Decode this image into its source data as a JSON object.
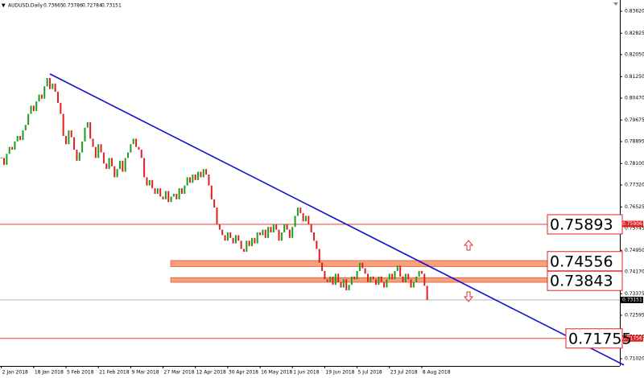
{
  "chart_data": {
    "type": "candlestick",
    "symbol": "AUDUSD,Daily",
    "ohlc": [
      0.73665,
      0.73786,
      0.72784,
      0.73151
    ],
    "closes": [
      0.783,
      0.7805,
      0.7845,
      0.787,
      0.786,
      0.789,
      0.791,
      0.7895,
      0.793,
      0.795,
      0.799,
      0.802,
      0.8,
      0.8035,
      0.806,
      0.8045,
      0.809,
      0.812,
      0.808,
      0.81,
      0.807,
      0.803,
      0.799,
      0.791,
      0.788,
      0.793,
      0.7905,
      0.786,
      0.782,
      0.785,
      0.789,
      0.794,
      0.796,
      0.79,
      0.787,
      0.783,
      0.788,
      0.785,
      0.781,
      0.779,
      0.783,
      0.78,
      0.776,
      0.779,
      0.782,
      0.778,
      0.783,
      0.785,
      0.788,
      0.79,
      0.787,
      0.786,
      0.783,
      0.776,
      0.773,
      0.775,
      0.772,
      0.77,
      0.772,
      0.769,
      0.768,
      0.771,
      0.767,
      0.769,
      0.77,
      0.768,
      0.772,
      0.77,
      0.773,
      0.776,
      0.774,
      0.777,
      0.775,
      0.778,
      0.776,
      0.779,
      0.777,
      0.773,
      0.768,
      0.765,
      0.759,
      0.757,
      0.755,
      0.753,
      0.756,
      0.754,
      0.752,
      0.755,
      0.753,
      0.75,
      0.749,
      0.753,
      0.751,
      0.754,
      0.752,
      0.756,
      0.755,
      0.757,
      0.754,
      0.758,
      0.756,
      0.759,
      0.757,
      0.753,
      0.756,
      0.759,
      0.757,
      0.754,
      0.758,
      0.762,
      0.765,
      0.763,
      0.76,
      0.762,
      0.759,
      0.756,
      0.753,
      0.75,
      0.745,
      0.742,
      0.739,
      0.738,
      0.74,
      0.737,
      0.741,
      0.738,
      0.736,
      0.739,
      0.735,
      0.737,
      0.74,
      0.739,
      0.742,
      0.745,
      0.743,
      0.741,
      0.738,
      0.74,
      0.739,
      0.737,
      0.74,
      0.738,
      0.736,
      0.739,
      0.741,
      0.739,
      0.742,
      0.744,
      0.74,
      0.738,
      0.741,
      0.739,
      0.736,
      0.738,
      0.74,
      0.742,
      0.741,
      0.73665,
      0.73151
    ],
    "up_color": "#1aa01a",
    "down_color": "#e02020",
    "xlim": [
      -0.5,
      229.5
    ],
    "ylim": [
      0.70757,
      0.8403
    ],
    "xticks": [
      {
        "value": 0,
        "label": "2 Jan 2018"
      },
      {
        "value": 12,
        "label": "18 Jan 2018"
      },
      {
        "value": 24,
        "label": "5 Feb 2018"
      },
      {
        "value": 36,
        "label": "21 Feb 2018"
      },
      {
        "value": 48,
        "label": "9 Mar 2018"
      },
      {
        "value": 60,
        "label": "27 Mar 2018"
      },
      {
        "value": 72,
        "label": "12 Apr 2018"
      },
      {
        "value": 84,
        "label": "30 Apr 2018"
      },
      {
        "value": 96,
        "label": "16 May 2018"
      },
      {
        "value": 108,
        "label": "1 Jun 2018"
      },
      {
        "value": 120,
        "label": "19 Jun 2018"
      },
      {
        "value": 132,
        "label": "5 Jul 2018"
      },
      {
        "value": 144,
        "label": "23 Jul 2018"
      },
      {
        "value": 156,
        "label": "8 Aug 2018"
      }
    ],
    "yticks": [
      {
        "value": 0.8362,
        "label": "0.83620"
      },
      0.82825,
      {
        "value": 0.8205,
        "label": "0.82050"
      },
      {
        "value": 0.8125,
        "label": "0.81250"
      },
      {
        "value": 0.8047,
        "label": "0.80470"
      },
      0.79675,
      0.78895,
      {
        "value": 0.781,
        "label": "0.78100"
      },
      {
        "value": 0.7732,
        "label": "0.77320"
      },
      0.76525,
      0.75745,
      {
        "value": 0.7495,
        "label": "0.74950"
      },
      {
        "value": 0.7417,
        "label": "0.74170"
      },
      0.73375,
      0.72595,
      {
        "value": 0.718,
        "label": "0.71800"
      },
      {
        "value": 0.7102,
        "label": "0.71020"
      }
    ],
    "trendline": {
      "x": [
        18,
        231
      ],
      "y": [
        0.8135,
        0.7079
      ],
      "color": "#1010d0"
    },
    "levels": [
      0.75893,
      0.71755
    ],
    "zones": [
      {
        "level": 0.74556,
        "range": [
          0.7436,
          0.7458
        ]
      },
      {
        "level": 0.73843,
        "range": [
          0.7379,
          0.7396
        ]
      }
    ],
    "price_tags": [
      0.75906,
      0.71756
    ]
  }
}
